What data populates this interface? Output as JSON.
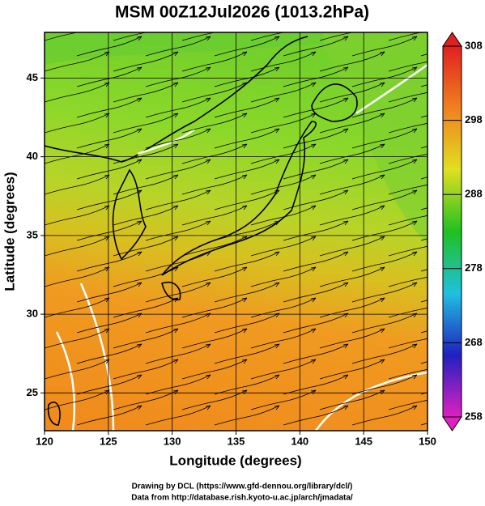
{
  "chart_data": {
    "type": "map",
    "title": "MSM 00Z12Jul2026 (1013.2hPa)",
    "x_label": "Longitude (degrees)",
    "y_label": "Latitude  (degrees)",
    "xlim": [
      120,
      150
    ],
    "ylim": [
      22.6,
      47.9
    ],
    "xticks": [
      120,
      125,
      130,
      135,
      140,
      145,
      150
    ],
    "yticks": [
      25,
      30,
      35,
      40,
      45
    ],
    "grid": true,
    "clim": [
      258,
      308
    ],
    "cticks": [
      258,
      268,
      278,
      288,
      298,
      308
    ],
    "colormap": [
      "#e020c0",
      "#2020c0",
      "#20c0e0",
      "#20c020",
      "#e0e020",
      "#f08020",
      "#e02020"
    ],
    "credits": [
      "Drawing by DCL (https://www.gfd-dennou.org/library/dcl/)",
      "Data from http://database.rish.kyoto-u.ac.jp/arch/jmadata/"
    ]
  }
}
